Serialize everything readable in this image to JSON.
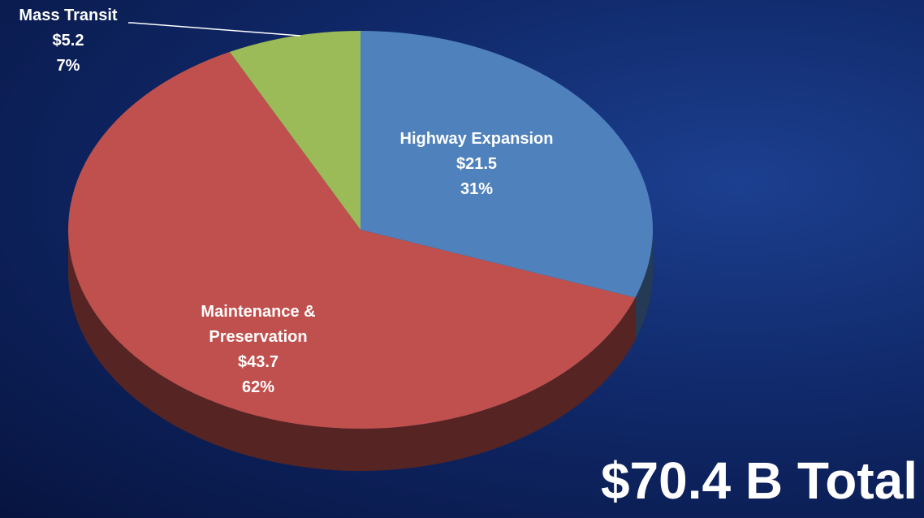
{
  "chart_data": {
    "type": "pie",
    "categories": [
      "Highway Expansion",
      "Maintenance & Preservation",
      "Mass Transit"
    ],
    "values": [
      21.5,
      43.7,
      5.2
    ],
    "value_labels": [
      "$21.5",
      "$43.7",
      "$5.2"
    ],
    "percent_labels": [
      "31%",
      "62%",
      "7%"
    ],
    "colors": [
      "#4f81bd",
      "#c0504d",
      "#9bbb59"
    ],
    "total_label": "$70.4 B Total"
  }
}
